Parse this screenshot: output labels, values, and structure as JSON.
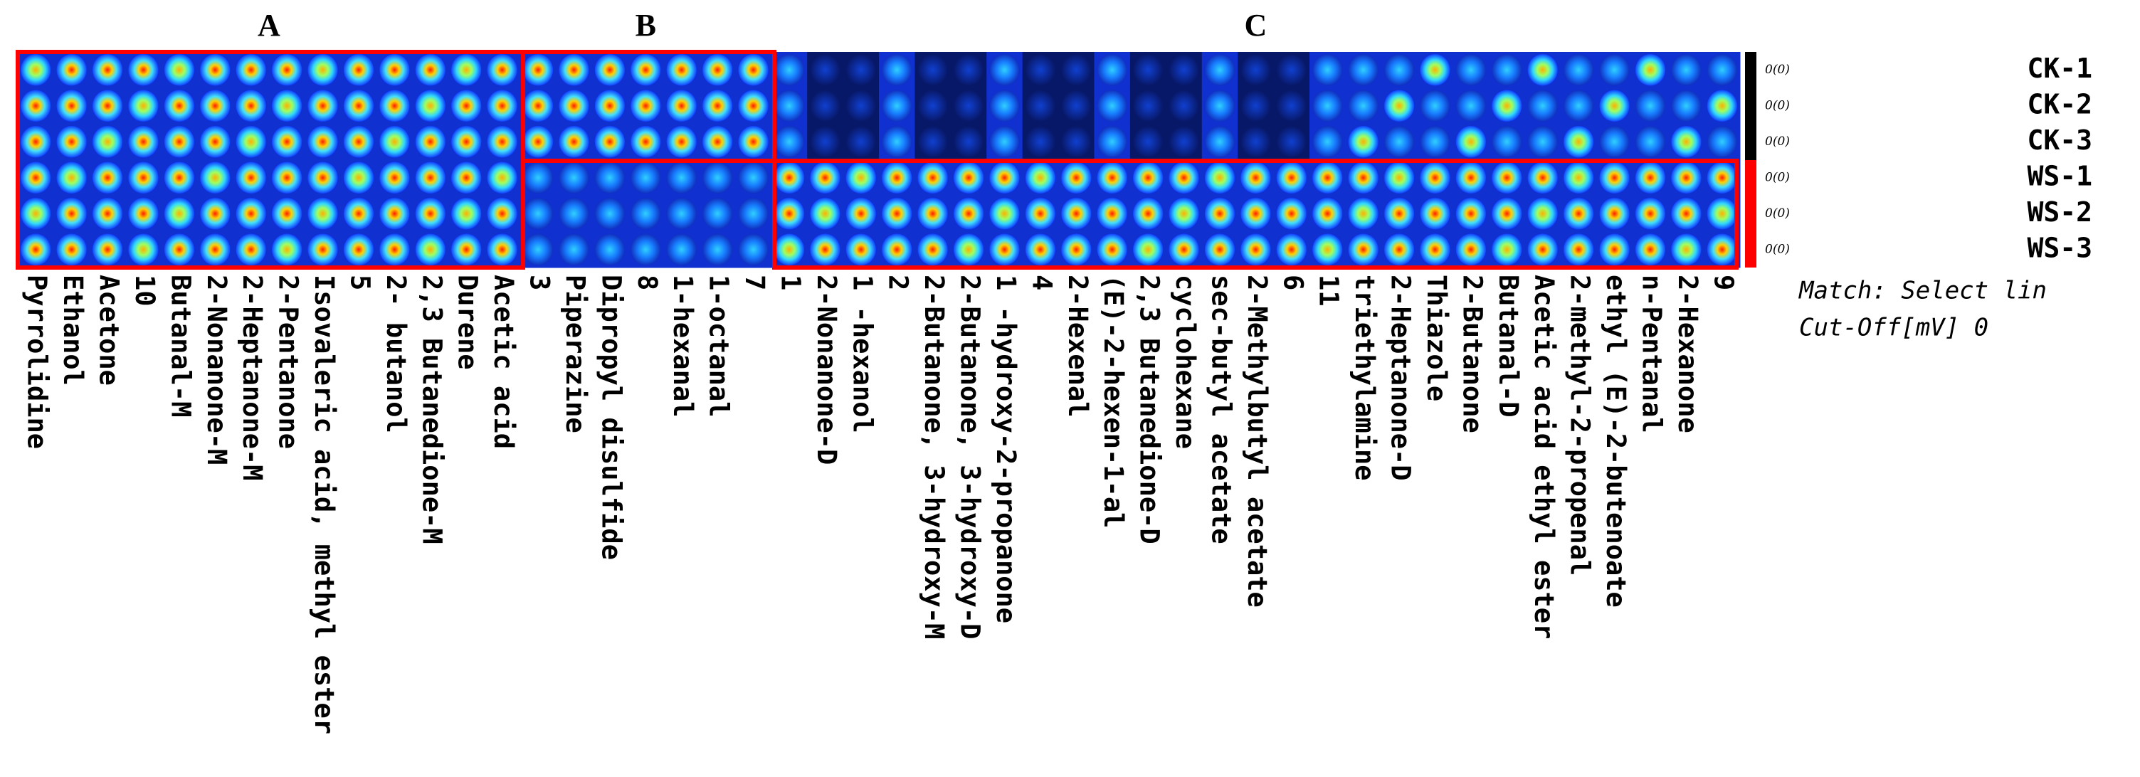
{
  "sections": [
    {
      "label": "A",
      "columns": [
        "Pyrrolidine",
        "Ethanol",
        "Acetone",
        "10",
        "Butanal-M",
        "2-Nonanone-M",
        "2-Heptanone-M",
        "2-Pentanone",
        "Isovaleric acid, methyl ester",
        "5",
        "2- butanol",
        "2,3 Butanedione-M",
        "Durene",
        "Acetic acid"
      ]
    },
    {
      "label": "B",
      "columns": [
        "3",
        "Piperazine",
        "Dipropyl disulfide",
        "8",
        "1-hexanal",
        "1-octanal",
        "7"
      ]
    },
    {
      "label": "C",
      "columns": [
        "1",
        "2-Nonanone-D",
        "1 -hexanol",
        "2",
        "2-Butanone, 3-hydroxy-M",
        "2-Butanone, 3-hydroxy-D",
        "1 -hydroxy-2-propanone",
        "4",
        "2-Hexenal",
        "(E)-2-hexen-1-al",
        "2,3 Butanedione-D",
        "cyclohexane",
        "sec-butyl acetate",
        "2-Methylbutyl acetate",
        "6",
        "11",
        "triethylamine",
        "2-Heptanone-D",
        "Thiazole",
        "2-Butanone",
        "Butanal-D",
        "Acetic acid ethyl ester",
        "2-methyl-2-propenal",
        "ethyl (E)-2-butenoate",
        "n-Pentanal",
        "2-Hexanone",
        "9"
      ]
    }
  ],
  "samples": [
    {
      "name": "CK-1",
      "code": "0(0)"
    },
    {
      "name": "CK-2",
      "code": "0(0)"
    },
    {
      "name": "CK-3",
      "code": "0(0)"
    },
    {
      "name": "WS-1",
      "code": "0(0)"
    },
    {
      "name": "WS-2",
      "code": "0(0)"
    },
    {
      "name": "WS-3",
      "code": "0(0)"
    }
  ],
  "match": "Match: Select lin",
  "cutoff": "Cut-Off[mV] 0"
}
